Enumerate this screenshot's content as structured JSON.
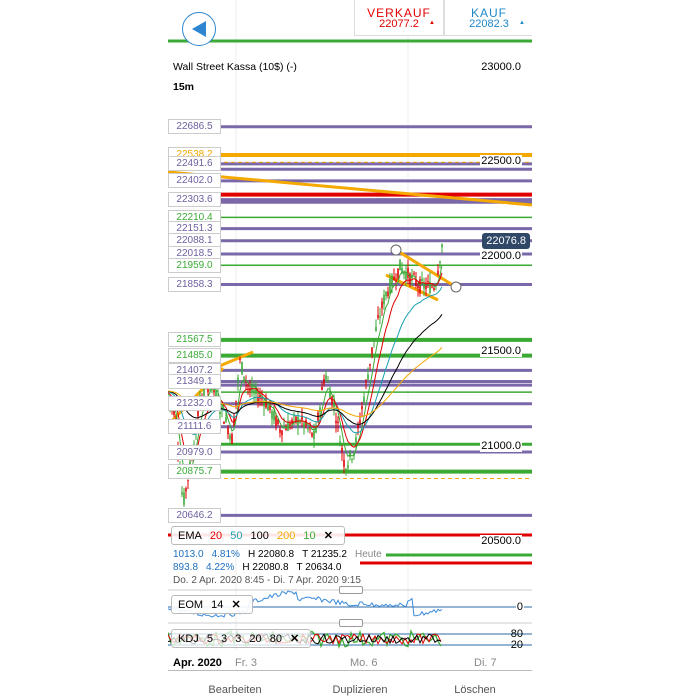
{
  "header": {
    "sell_label": "VERKAUF",
    "sell_price": "22077.2",
    "buy_label": "KAUF",
    "buy_price": "22082.3",
    "sell_color": "#e00000",
    "buy_color": "#1e88c8"
  },
  "instrument": {
    "name": "Wall Street Kassa (10$) (-)",
    "timeframe": "15m"
  },
  "price_axis": [
    "23000.0",
    "22500.0",
    "22000.0",
    "21500.0",
    "21000.0",
    "20500.0"
  ],
  "current_price": "22076.8",
  "levels": [
    {
      "label": "22686.5",
      "price": 22686.5,
      "color": "#7a68a8"
    },
    {
      "label": "22538.2",
      "price": 22538.2,
      "color": "#f5a800"
    },
    {
      "label": "22491.6",
      "price": 22491.6,
      "color": "#7a68a8"
    },
    {
      "label": "22402.0",
      "price": 22402.0,
      "color": "#7a68a8"
    },
    {
      "label": "22303.6",
      "price": 22303.6,
      "color": "#7a68a8"
    },
    {
      "label": "22210.4",
      "price": 22210.4,
      "color": "#3aaa35"
    },
    {
      "label": "22151.3",
      "price": 22151.3,
      "color": "#7a68a8"
    },
    {
      "label": "22088.1",
      "price": 22088.1,
      "color": "#7a68a8"
    },
    {
      "label": "22018.5",
      "price": 22018.5,
      "color": "#7a68a8"
    },
    {
      "label": "21959.0",
      "price": 21959.0,
      "color": "#3aaa35"
    },
    {
      "label": "21858.3",
      "price": 21858.3,
      "color": "#7a68a8"
    },
    {
      "label": "21567.5",
      "price": 21567.5,
      "color": "#3aaa35"
    },
    {
      "label": "21485.0",
      "price": 21485.0,
      "color": "#3aaa35"
    },
    {
      "label": "21407.2",
      "price": 21407.2,
      "color": "#7a68a8"
    },
    {
      "label": "21349.1",
      "price": 21349.1,
      "color": "#7a68a8"
    },
    {
      "label": "21232.0",
      "price": 21232.0,
      "color": "#7a68a8"
    },
    {
      "label": "21111.6",
      "price": 21111.6,
      "color": "#7a68a8"
    },
    {
      "label": "20979.0",
      "price": 20979.0,
      "color": "#7a68a8"
    },
    {
      "label": "20875.7",
      "price": 20875.7,
      "color": "#3aaa35"
    },
    {
      "label": "20646.2",
      "price": 20646.2,
      "color": "#7a68a8"
    }
  ],
  "ema_legend": {
    "name": "EMA",
    "periods": [
      {
        "v": "20",
        "color": "#e00000"
      },
      {
        "v": "50",
        "color": "#1aa0b0"
      },
      {
        "v": "100",
        "color": "#000000"
      },
      {
        "v": "200",
        "color": "#f5a800"
      },
      {
        "v": "10",
        "color": "#3aaa35"
      }
    ],
    "close": "✕"
  },
  "stats": [
    {
      "change": "1013.0",
      "pct": "4.81%",
      "high": "H 22080.8",
      "low": "T 21235.2",
      "tag": "Heute"
    },
    {
      "change": "893.8",
      "pct": "4.22%",
      "high": "H 22080.8",
      "low": "T 20634.0",
      "tag": ""
    }
  ],
  "date_range": "Do. 2 Apr. 2020 8:45 - Di. 7 Apr. 2020 9:15",
  "eom": {
    "name": "EOM",
    "period": "14",
    "close": "✕",
    "axis": "0"
  },
  "kdj": {
    "name": "KDJ",
    "params": [
      "5",
      "3",
      "3",
      "20",
      "80"
    ],
    "close": "✕",
    "axis": [
      "80",
      "20"
    ]
  },
  "x_axis": [
    "Apr. 2020",
    "Fr. 3",
    "Mo. 6",
    "Di. 7"
  ],
  "toolbar": {
    "edit": "Bearbeiten",
    "duplicate": "Duplizieren",
    "delete": "Löschen"
  }
}
